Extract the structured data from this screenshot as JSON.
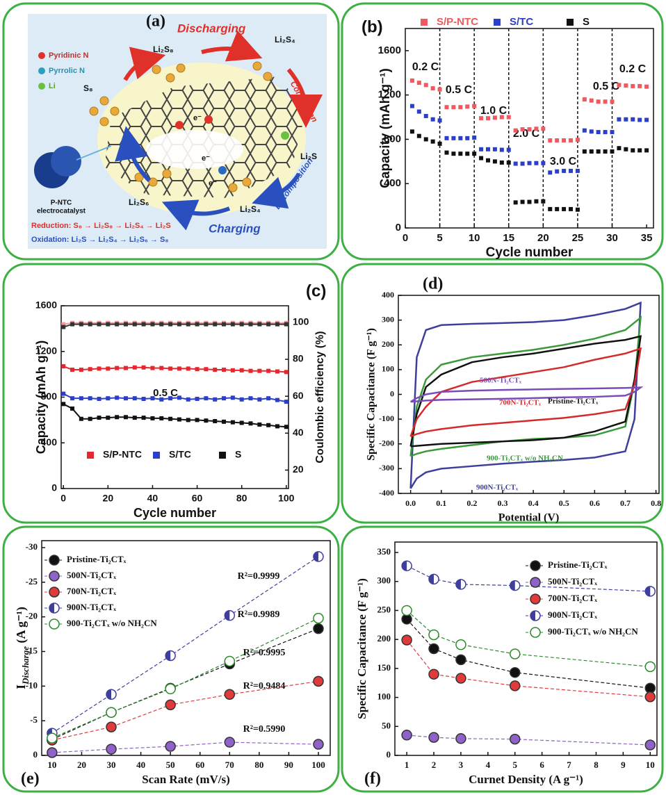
{
  "diagram": {
    "label": "(a)",
    "legend": [
      "Pyridinic N",
      "Pyrrolic N",
      "Li"
    ],
    "discharging": "Discharging",
    "charging": "Charging",
    "conversion": "Conversion",
    "decomposition": "Decomposition",
    "catalyst": [
      "P-NTC",
      "electrocatalyst"
    ],
    "species": [
      "S₈",
      "Li₂S₈",
      "Li₂S₄",
      "Li₂S",
      "Li₂S₄",
      "Li₂S₆"
    ],
    "electrons": [
      "e⁻",
      "e⁻",
      "e⁻"
    ],
    "reduction": "Reduction: S₈ → Li₂S₈ → Li₂S₄ → Li₂S",
    "oxidation": "Oxidation: Li₂S → Li₂S₄ → Li₂S₆ → S₈"
  },
  "chart_data": [
    {
      "type": "scatter",
      "label": "(b)",
      "marker": "square",
      "legend": "top",
      "x": [
        1,
        2,
        3,
        4,
        5,
        6,
        7,
        8,
        9,
        10,
        11,
        12,
        13,
        14,
        15,
        16,
        17,
        18,
        19,
        20,
        21,
        22,
        23,
        24,
        25,
        26,
        27,
        28,
        29,
        30,
        31,
        32,
        33,
        34,
        35
      ],
      "series": [
        {
          "name": "S/P-NTC",
          "color": "#f0595f",
          "values": [
            1330,
            1310,
            1290,
            1260,
            1250,
            1090,
            1090,
            1090,
            1095,
            1100,
            990,
            990,
            995,
            1000,
            1000,
            880,
            890,
            890,
            895,
            895,
            790,
            790,
            790,
            790,
            795,
            1160,
            1150,
            1140,
            1140,
            1140,
            1290,
            1285,
            1280,
            1280,
            1275
          ]
        },
        {
          "name": "S/TC",
          "color": "#2b3fc8",
          "values": [
            1100,
            1050,
            1010,
            980,
            970,
            810,
            810,
            810,
            810,
            815,
            710,
            710,
            710,
            705,
            705,
            580,
            580,
            585,
            585,
            585,
            500,
            510,
            515,
            515,
            515,
            880,
            870,
            865,
            865,
            865,
            980,
            980,
            980,
            975,
            975
          ]
        },
        {
          "name": "S",
          "color": "#111111",
          "values": [
            870,
            830,
            800,
            780,
            760,
            680,
            670,
            670,
            670,
            670,
            630,
            610,
            600,
            590,
            590,
            230,
            235,
            235,
            240,
            240,
            170,
            170,
            170,
            170,
            165,
            690,
            690,
            690,
            690,
            690,
            720,
            710,
            700,
            700,
            700
          ]
        }
      ],
      "xlim": [
        0,
        36
      ],
      "xticks": [
        0,
        5,
        10,
        15,
        20,
        25,
        30,
        35
      ],
      "ylim": [
        0,
        1800
      ],
      "yticks": [
        0,
        400,
        800,
        1200,
        1600
      ],
      "xlabel": "Cycle number",
      "ylabel": "Capacity (mAh g⁻¹)",
      "vlines": [
        5,
        10,
        15,
        20,
        25,
        30
      ],
      "annotations": [
        "0.2 C",
        "0.5 C",
        "1.0 C",
        "2.0 C",
        "3.0 C",
        "0.5 C",
        "0.2 C"
      ]
    },
    {
      "type": "scatter",
      "label": "(c)",
      "marker": "square",
      "line_style": "solid",
      "legend": "lower center",
      "x": [
        0,
        4,
        8,
        12,
        16,
        20,
        24,
        28,
        32,
        36,
        40,
        44,
        48,
        52,
        56,
        60,
        64,
        68,
        72,
        76,
        80,
        84,
        88,
        92,
        96,
        100
      ],
      "series": [
        {
          "name": "S/P-NTC",
          "color": "#e8262d",
          "values": [
            1070,
            1040,
            1040,
            1045,
            1050,
            1050,
            1055,
            1055,
            1060,
            1060,
            1055,
            1055,
            1050,
            1050,
            1050,
            1045,
            1045,
            1040,
            1040,
            1035,
            1035,
            1030,
            1030,
            1030,
            1025,
            1020
          ]
        },
        {
          "name": "S/TC",
          "color": "#2b3fc8",
          "values": [
            830,
            790,
            790,
            790,
            785,
            790,
            795,
            790,
            790,
            785,
            790,
            780,
            790,
            795,
            780,
            785,
            790,
            780,
            790,
            795,
            780,
            790,
            780,
            790,
            775,
            760
          ]
        },
        {
          "name": "S",
          "color": "#111111",
          "values": [
            740,
            700,
            610,
            610,
            620,
            620,
            625,
            625,
            620,
            620,
            615,
            615,
            610,
            605,
            600,
            600,
            595,
            590,
            585,
            580,
            575,
            570,
            560,
            555,
            545,
            540
          ]
        },
        {
          "color": "#f19aa0",
          "axis": "y2",
          "values": [
            99.0,
            99.7,
            99.7,
            99.7,
            99.7,
            99.7,
            99.7,
            99.7,
            99.7,
            99.7,
            99.7,
            99.7,
            99.7,
            99.7,
            99.7,
            99.7,
            99.7,
            99.7,
            99.7,
            99.7,
            99.7,
            99.7,
            99.7,
            99.7,
            99.7,
            99.7
          ]
        },
        {
          "color": "#333333",
          "axis": "y2",
          "values": [
            97.5,
            99.0,
            99.0,
            99.0,
            99.0,
            99.0,
            99.0,
            99.0,
            99.0,
            99.0,
            99.0,
            99.0,
            99.0,
            99.0,
            99.0,
            99.0,
            99.0,
            99.0,
            99.0,
            99.0,
            99.0,
            99.0,
            99.0,
            99.0,
            99.0,
            99.0
          ]
        }
      ],
      "xlim": [
        -1,
        101
      ],
      "xticks": [
        0,
        20,
        40,
        60,
        80,
        100
      ],
      "ylim": [
        0,
        1600
      ],
      "yticks": [
        0,
        400,
        800,
        1200,
        1600
      ],
      "y2lim": [
        10,
        109
      ],
      "y2ticks": [
        20,
        40,
        60,
        80,
        100
      ],
      "xlabel": "Cycle number",
      "ylabel": "Capacity (mAh g⁻¹)",
      "y2label": "Coulombic efficiency (%)",
      "annotations": [
        "0.5 C"
      ]
    },
    {
      "type": "line",
      "label": "(d)",
      "legend": "inline",
      "x": [
        0,
        0.02,
        0.05,
        0.1,
        0.2,
        0.3,
        0.4,
        0.5,
        0.6,
        0.7,
        0.75,
        0.75,
        0.73,
        0.7,
        0.6,
        0.5,
        0.4,
        0.3,
        0.2,
        0.1,
        0.05,
        0.02,
        0
      ],
      "series": [
        {
          "name": "900N-Ti₂CTₓ",
          "color": "#3e3e9c",
          "values": [
            -380,
            150,
            260,
            280,
            285,
            288,
            292,
            300,
            320,
            345,
            370,
            370,
            -100,
            -230,
            -255,
            -265,
            -272,
            -280,
            -290,
            -300,
            -315,
            -340,
            -380
          ]
        },
        {
          "name": "900-Ti₂CTₓ w/o NH₂CN",
          "color": "#3a9a3a",
          "values": [
            -250,
            -50,
            60,
            120,
            150,
            165,
            180,
            200,
            225,
            260,
            310,
            310,
            50,
            -130,
            -165,
            -175,
            -180,
            -190,
            -205,
            -220,
            -230,
            -240,
            -250
          ]
        },
        {
          "name": "Pristine-Ti₂CTₓ",
          "color": "#111111",
          "values": [
            -210,
            -80,
            30,
            80,
            130,
            150,
            165,
            185,
            205,
            220,
            235,
            235,
            60,
            -110,
            -150,
            -175,
            -185,
            -190,
            -195,
            -200,
            -205,
            -208,
            -210
          ]
        },
        {
          "name": "700N-Ti₂CTₓ",
          "color": "#d42a2a",
          "values": [
            -170,
            -100,
            -50,
            10,
            50,
            70,
            90,
            110,
            140,
            165,
            185,
            185,
            40,
            -60,
            -80,
            -95,
            -105,
            -115,
            -125,
            -140,
            -150,
            -160,
            -170
          ]
        },
        {
          "name": "500N-Ti₂CTₓ",
          "color": "#7a4cb8",
          "values": [
            -30,
            -15,
            0,
            10,
            15,
            18,
            20,
            22,
            24,
            26,
            28,
            28,
            10,
            -5,
            -10,
            -12,
            -15,
            -18,
            -20,
            -22,
            -25,
            -28,
            -30
          ]
        }
      ],
      "xlim": [
        -0.04,
        0.81
      ],
      "xticks": [
        {
          "value": 0,
          "label": "0.0"
        },
        0.1,
        0.2,
        0.3,
        0.4,
        0.5,
        0.6,
        0.7,
        0.8
      ],
      "ylim": [
        -400,
        400
      ],
      "yticks": [
        -400,
        -300,
        -200,
        -100,
        0,
        100,
        200,
        300,
        400
      ],
      "xlabel": "Potential (V)",
      "ylabel": "Specific Capacitance (F g⁻¹)"
    },
    {
      "type": "scatter",
      "label": "(e)",
      "marker": "circle",
      "line_style": "dashed",
      "legend": "upper left",
      "x": [
        10,
        30,
        50,
        70,
        100
      ],
      "series": [
        {
          "name": "Pristine-Ti₂CTₓ",
          "color": "#111111",
          "marker_fill": "full",
          "values": [
            -2.3,
            -6.2,
            -9.7,
            -13.2,
            -18.3
          ]
        },
        {
          "name": "500N-Ti₂CTₓ",
          "color": "#8e62c8",
          "marker_fill": "full",
          "values": [
            -0.4,
            -0.9,
            -1.3,
            -1.9,
            -1.6
          ]
        },
        {
          "name": "700N-Ti₂CTₓ",
          "color": "#e03a3a",
          "marker_fill": "full",
          "values": [
            -2.2,
            -4.1,
            -7.3,
            -8.8,
            -10.7
          ]
        },
        {
          "name": "900N-Ti₂CTₓ",
          "color": "#3e3e9c",
          "marker_fill": "half",
          "values": [
            -3.2,
            -8.8,
            -14.4,
            -20.2,
            -28.7
          ]
        },
        {
          "name": "900-Ti₂CTₓ w/o NH₂CN",
          "color": "#2a8a2a",
          "marker_fill": "none",
          "values": [
            -2.5,
            -6.2,
            -9.6,
            -13.6,
            -19.8
          ]
        }
      ],
      "xlim": [
        6.5,
        104
      ],
      "xticks": [
        10,
        20,
        30,
        40,
        50,
        60,
        70,
        80,
        90,
        100
      ],
      "ylim": [
        0,
        -31
      ],
      "yticks": [
        0,
        -5,
        -10,
        -15,
        -20,
        -25,
        -30
      ],
      "xlabel": "Scan Rate (mV/s)",
      "ylabel": [
        "I",
        "Discharge",
        " (A g⁻¹)"
      ],
      "annotations": [
        "R²=0.9999",
        "R²=0.9989",
        "R²=0.9995",
        "R²=0.9484",
        "R²=0.5990"
      ]
    },
    {
      "type": "scatter",
      "label": "(f)",
      "marker": "circle",
      "line_style": "dashed",
      "legend": "center right",
      "x": [
        1,
        2,
        3,
        5,
        10
      ],
      "series": [
        {
          "name": "Pristine-Ti₂CTₓ",
          "color": "#111111",
          "marker_fill": "full",
          "values": [
            235,
            184,
            165,
            143,
            116
          ]
        },
        {
          "name": "500N-Ti₂CTₓ",
          "color": "#8e62c8",
          "marker_fill": "full",
          "values": [
            35,
            31,
            29,
            28,
            18
          ]
        },
        {
          "name": "700N-Ti₂CTₓ",
          "color": "#e03a3a",
          "marker_fill": "full",
          "values": [
            199,
            140,
            133,
            120,
            101
          ]
        },
        {
          "name": "900N-Ti₂CTₓ",
          "color": "#3e3e9c",
          "marker_fill": "half",
          "values": [
            327,
            304,
            295,
            293,
            283
          ]
        },
        {
          "name": "900-Ti₂CTₓ w/o NH₂CN",
          "color": "#2a8a2a",
          "marker_fill": "none",
          "values": [
            250,
            208,
            191,
            175,
            153
          ]
        }
      ],
      "xlim": [
        0.56,
        10.25
      ],
      "xticks": [
        1,
        2,
        3,
        4,
        5,
        6,
        7,
        8,
        9,
        10
      ],
      "ylim": [
        0,
        368
      ],
      "yticks": [
        0,
        50,
        100,
        150,
        200,
        250,
        300,
        350
      ],
      "xlabel": "Curnet Density (A g⁻¹)",
      "ylabel": "Specific Capacitance (F g⁻¹)"
    }
  ]
}
